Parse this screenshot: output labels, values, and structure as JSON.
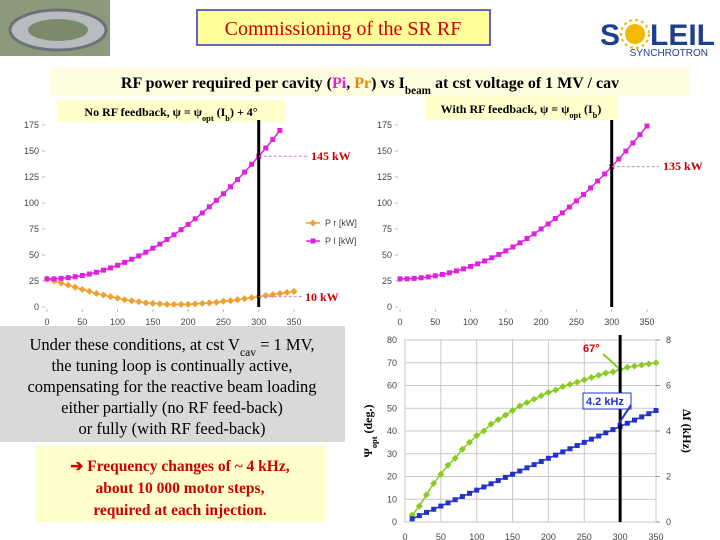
{
  "header": {
    "title": "Commissioning of the SR RF",
    "logo": [
      "S",
      "LEIL"
    ],
    "logo_sub": "SYNCHROTRON"
  },
  "subtitle": [
    "RF power required per cavity (",
    "Pi",
    ", ",
    "Pr",
    ") vs I",
    "beam",
    " at cst voltage of 1 MV / cav"
  ],
  "note": {
    "lines": [
      [
        "Under these conditions, at cst V",
        "cav",
        " = 1 MV,"
      ],
      [
        "the tuning loop is continually active,"
      ],
      [
        "compensating for the reactive beam loading"
      ],
      [
        "either partially (no RF feed-back)"
      ],
      [
        "or fully (with RF feed-back)"
      ]
    ]
  },
  "conclusion": [
    "➔ Frequency changes of ~ 4 kHz,",
    "about 10 000 motor steps,",
    "required at each injection."
  ],
  "chart_data": [
    {
      "type": "line",
      "title": [
        "No RF feedback, ψ = ψ",
        "opt",
        " (I",
        "b",
        ") + 4°"
      ],
      "xlim": [
        0,
        350
      ],
      "xticks": [
        0,
        50,
        100,
        150,
        200,
        250,
        300,
        350
      ],
      "ylim": [
        0,
        175
      ],
      "yticks": [
        0,
        25,
        50,
        75,
        100,
        125,
        150,
        175
      ],
      "grid": false,
      "marker_x": 300,
      "legend": "right",
      "series": [
        {
          "name": "P r [kW]",
          "color": "#f0a030",
          "marker": "diamond",
          "x": [
            0,
            10,
            20,
            30,
            40,
            50,
            60,
            70,
            80,
            90,
            100,
            110,
            120,
            130,
            140,
            150,
            160,
            170,
            180,
            190,
            200,
            210,
            220,
            230,
            240,
            250,
            260,
            270,
            280,
            290,
            300,
            310,
            320,
            330,
            340,
            350
          ],
          "values": [
            27,
            25,
            23,
            21,
            19,
            17,
            15,
            13,
            11.5,
            10,
            8.5,
            7,
            6,
            5,
            4,
            3.5,
            3,
            2.5,
            2.5,
            2.5,
            2.5,
            3,
            3.5,
            4,
            4.5,
            5.5,
            6,
            7,
            8,
            9,
            10,
            11,
            12,
            13,
            14,
            15
          ]
        },
        {
          "name": "P I [kW]",
          "color": "#e020e0",
          "marker": "square",
          "x": [
            0,
            10,
            20,
            30,
            40,
            50,
            60,
            70,
            80,
            90,
            100,
            110,
            120,
            130,
            140,
            150,
            160,
            170,
            180,
            190,
            200,
            210,
            220,
            230,
            240,
            250,
            260,
            270,
            280,
            290,
            300,
            310,
            320,
            330
          ],
          "values": [
            27,
            27.1,
            27.5,
            28.2,
            29.1,
            30.3,
            31.7,
            33.4,
            35.4,
            37.6,
            40.1,
            42.9,
            45.9,
            49.1,
            52.7,
            56.5,
            60.5,
            64.9,
            69.4,
            74.3,
            79.4,
            84.8,
            90.4,
            96.3,
            102.5,
            108.9,
            115.6,
            122.5,
            129.7,
            137.2,
            145,
            152.9,
            161.1,
            169.7
          ]
        }
      ],
      "annotations": [
        "145 kW",
        "10 kW"
      ]
    },
    {
      "type": "line",
      "title": [
        "With RF feedback, ψ = ψ",
        "opt",
        " (I",
        "b",
        ")"
      ],
      "xlim": [
        0,
        350
      ],
      "xticks": [
        0,
        50,
        100,
        150,
        200,
        250,
        300,
        350
      ],
      "ylim": [
        0,
        175
      ],
      "yticks": [
        0,
        25,
        50,
        75,
        100,
        125,
        150,
        175
      ],
      "grid": false,
      "marker_x": 300,
      "series": [
        {
          "color": "#e020e0",
          "marker": "square",
          "x": [
            0,
            10,
            20,
            30,
            40,
            50,
            60,
            70,
            80,
            90,
            100,
            110,
            120,
            130,
            140,
            150,
            160,
            170,
            180,
            190,
            200,
            210,
            220,
            230,
            240,
            250,
            260,
            270,
            280,
            290,
            300,
            310,
            320,
            330,
            340,
            350
          ],
          "values": [
            27,
            27.1,
            27.5,
            28.1,
            28.9,
            30,
            31.3,
            32.9,
            34.7,
            36.7,
            39,
            41.5,
            44.3,
            47.3,
            50.5,
            54,
            57.7,
            61.7,
            65.9,
            70.3,
            75,
            79.9,
            85.1,
            90.5,
            96.1,
            102,
            108.1,
            114.5,
            121.1,
            127.9,
            135,
            142.3,
            149.9,
            157.7,
            165.7,
            174
          ]
        }
      ],
      "annotations": [
        "135 kW"
      ]
    },
    {
      "type": "line",
      "y_label": [
        "Ψ",
        "opt",
        " (deg.)"
      ],
      "y2_label": "Δf (kHz)",
      "xlim": [
        0,
        350
      ],
      "xticks": [
        0,
        50,
        100,
        150,
        200,
        250,
        300,
        350
      ],
      "ylim": [
        0,
        80
      ],
      "yticks": [
        0,
        10,
        20,
        30,
        40,
        50,
        60,
        70,
        80
      ],
      "y2lim": [
        0,
        8
      ],
      "y2ticks": [
        0,
        2,
        4,
        6,
        8
      ],
      "grid": true,
      "marker_x": 300,
      "series": [
        {
          "color": "#88cc22",
          "marker": "diamond",
          "x": [
            10,
            20,
            30,
            40,
            50,
            60,
            70,
            80,
            90,
            100,
            110,
            120,
            130,
            140,
            150,
            160,
            170,
            180,
            190,
            200,
            210,
            220,
            230,
            240,
            250,
            260,
            270,
            280,
            290,
            300,
            310,
            320,
            330,
            340,
            350
          ],
          "values": [
            3,
            7,
            12,
            17,
            21,
            25,
            28,
            32,
            35,
            38,
            40,
            43,
            45,
            47,
            49,
            51,
            52.5,
            54,
            55.5,
            57,
            58,
            59.5,
            60.5,
            61.5,
            62.5,
            63.5,
            64.5,
            65.5,
            66,
            67,
            68,
            68.5,
            69,
            69.5,
            70
          ]
        },
        {
          "color": "#2233cc",
          "marker": "square",
          "axis": "y2",
          "x": [
            10,
            20,
            30,
            40,
            50,
            60,
            70,
            80,
            90,
            100,
            110,
            120,
            130,
            140,
            150,
            160,
            170,
            180,
            190,
            200,
            210,
            220,
            230,
            240,
            250,
            260,
            270,
            280,
            290,
            300,
            310,
            320,
            330,
            340,
            350
          ],
          "values": [
            0.14,
            0.28,
            0.42,
            0.56,
            0.7,
            0.84,
            0.98,
            1.12,
            1.26,
            1.4,
            1.54,
            1.68,
            1.82,
            1.96,
            2.1,
            2.24,
            2.38,
            2.52,
            2.66,
            2.8,
            2.94,
            3.08,
            3.22,
            3.36,
            3.5,
            3.64,
            3.78,
            3.92,
            4.06,
            4.2,
            4.34,
            4.48,
            4.62,
            4.76,
            4.9
          ]
        }
      ],
      "annotations": [
        "67°",
        "4.2 kHz"
      ]
    }
  ]
}
